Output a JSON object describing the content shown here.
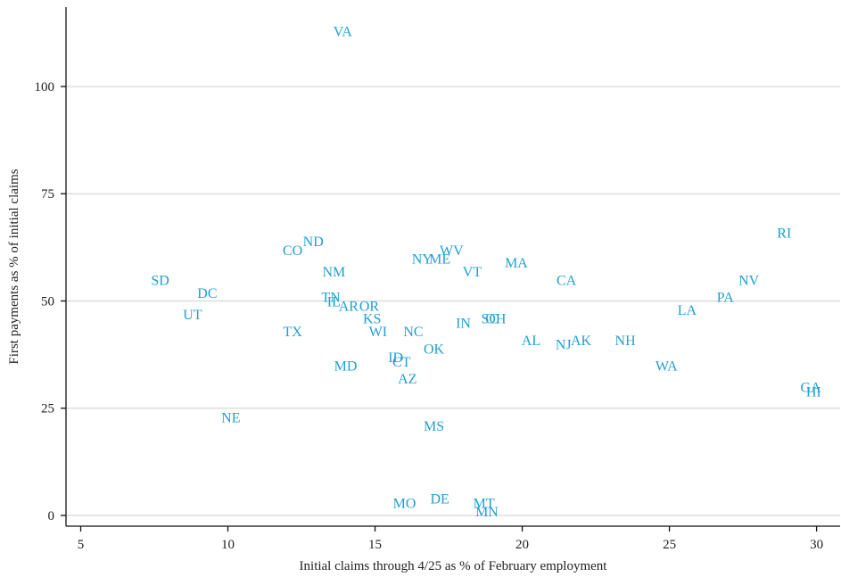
{
  "chart_data": {
    "type": "scatter",
    "xlabel": "Initial claims through 4/25 as % of February employment",
    "ylabel": "First payments as % of initial claims",
    "xlim": [
      4.5,
      30.8
    ],
    "ylim": [
      -2.5,
      118.5
    ],
    "xticks": [
      5,
      10,
      15,
      20,
      25,
      30
    ],
    "yticks": [
      0,
      25,
      50,
      75,
      100
    ],
    "grid": "horizontal",
    "label_color": "#1f9fd0",
    "points": [
      {
        "label": "VA",
        "x": 13.9,
        "y": 113
      },
      {
        "label": "RI",
        "x": 28.9,
        "y": 66
      },
      {
        "label": "ND",
        "x": 12.9,
        "y": 64
      },
      {
        "label": "CO",
        "x": 12.2,
        "y": 62
      },
      {
        "label": "WV",
        "x": 17.6,
        "y": 62
      },
      {
        "label": "ME",
        "x": 17.2,
        "y": 60
      },
      {
        "label": "NY",
        "x": 16.6,
        "y": 60
      },
      {
        "label": "MA",
        "x": 19.8,
        "y": 59
      },
      {
        "label": "NM",
        "x": 13.6,
        "y": 57
      },
      {
        "label": "VT",
        "x": 18.3,
        "y": 57
      },
      {
        "label": "SD",
        "x": 7.7,
        "y": 55
      },
      {
        "label": "CA",
        "x": 21.5,
        "y": 55
      },
      {
        "label": "NV",
        "x": 27.7,
        "y": 55
      },
      {
        "label": "DC",
        "x": 9.3,
        "y": 52
      },
      {
        "label": "TN",
        "x": 13.5,
        "y": 51
      },
      {
        "label": "PA",
        "x": 26.9,
        "y": 51
      },
      {
        "label": "IL",
        "x": 13.6,
        "y": 50
      },
      {
        "label": "AR",
        "x": 14.1,
        "y": 49
      },
      {
        "label": "OR",
        "x": 14.8,
        "y": 49
      },
      {
        "label": "UT",
        "x": 8.8,
        "y": 47
      },
      {
        "label": "LA",
        "x": 25.6,
        "y": 48
      },
      {
        "label": "KS",
        "x": 14.9,
        "y": 46
      },
      {
        "label": "SC",
        "x": 18.9,
        "y": 46
      },
      {
        "label": "OH",
        "x": 19.1,
        "y": 46
      },
      {
        "label": "IN",
        "x": 18.0,
        "y": 45
      },
      {
        "label": "TX",
        "x": 12.2,
        "y": 43
      },
      {
        "label": "NC",
        "x": 16.3,
        "y": 43
      },
      {
        "label": "WI",
        "x": 15.1,
        "y": 43
      },
      {
        "label": "NH",
        "x": 23.5,
        "y": 41
      },
      {
        "label": "AL",
        "x": 20.3,
        "y": 41
      },
      {
        "label": "AK",
        "x": 22.0,
        "y": 41
      },
      {
        "label": "NJ",
        "x": 21.4,
        "y": 40
      },
      {
        "label": "OK",
        "x": 17.0,
        "y": 39
      },
      {
        "label": "ID",
        "x": 15.7,
        "y": 37
      },
      {
        "label": "CT",
        "x": 15.9,
        "y": 36
      },
      {
        "label": "MD",
        "x": 14.0,
        "y": 35
      },
      {
        "label": "WA",
        "x": 24.9,
        "y": 35
      },
      {
        "label": "AZ",
        "x": 16.1,
        "y": 32
      },
      {
        "label": "GA",
        "x": 29.8,
        "y": 30
      },
      {
        "label": "HI",
        "x": 29.9,
        "y": 29
      },
      {
        "label": "NE",
        "x": 10.1,
        "y": 23
      },
      {
        "label": "MS",
        "x": 17.0,
        "y": 21
      },
      {
        "label": "DE",
        "x": 17.2,
        "y": 4
      },
      {
        "label": "MO",
        "x": 16.0,
        "y": 3
      },
      {
        "label": "MT",
        "x": 18.7,
        "y": 3
      },
      {
        "label": "MN",
        "x": 18.8,
        "y": 1
      }
    ]
  }
}
